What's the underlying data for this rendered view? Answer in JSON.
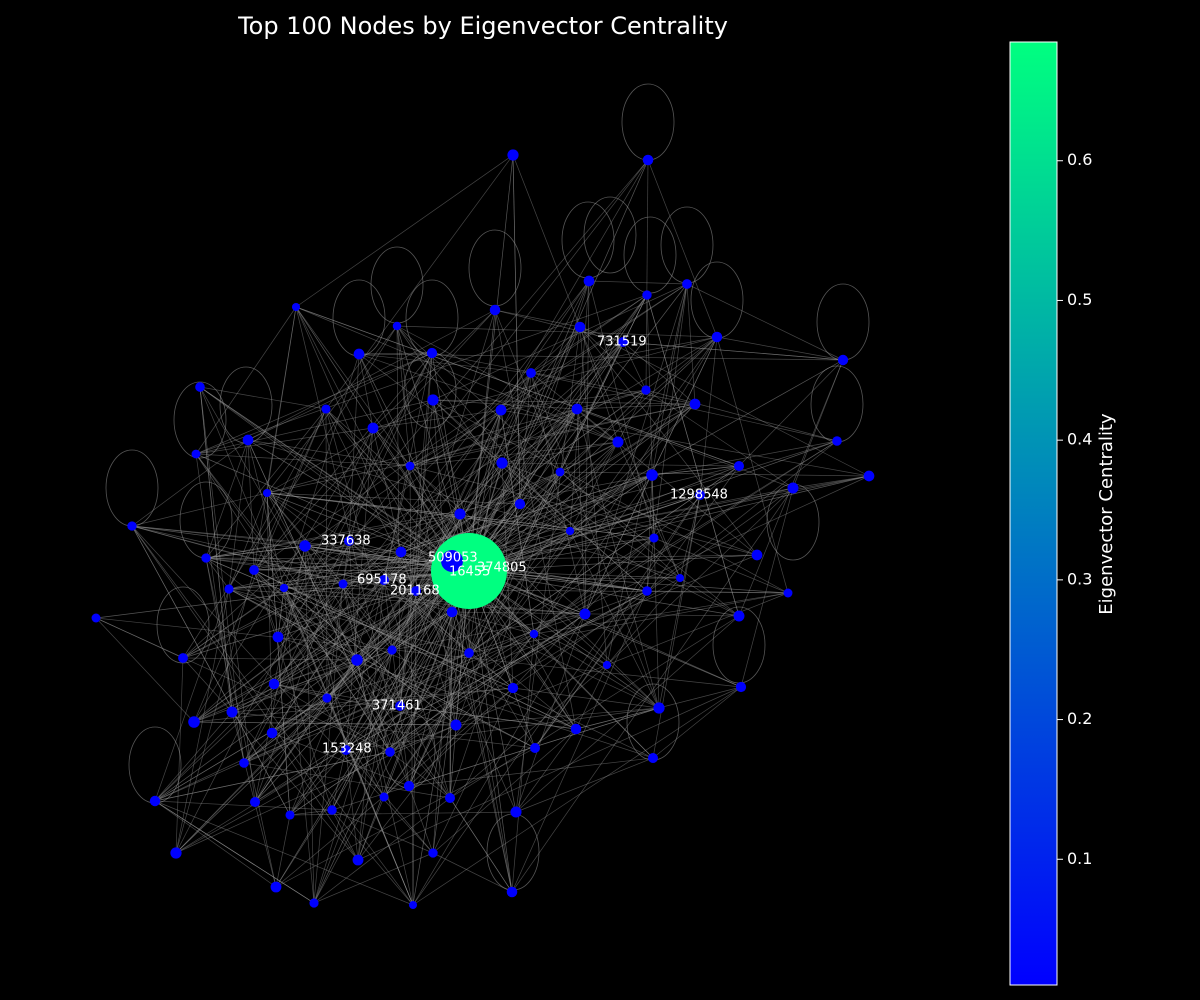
{
  "chart_data": {
    "type": "network",
    "title": "Top 100 Nodes by Eigenvector Centrality",
    "background_color": "#000000",
    "edge_color": "#9a9a9a",
    "node_color_low": "#0000ff",
    "node_color_high": "#00ff80",
    "labeled_nodes": [
      {
        "id": "509053"
      },
      {
        "id": "16455"
      },
      {
        "id": "374805"
      },
      {
        "id": "337638"
      },
      {
        "id": "695178"
      },
      {
        "id": "201168"
      },
      {
        "id": "731519"
      },
      {
        "id": "1298548"
      },
      {
        "id": "371461"
      },
      {
        "id": "153248"
      }
    ],
    "hub_node": {
      "id": "16455",
      "centrality": 0.68
    },
    "other_nodes_centrality_approx": 0.01,
    "self_loops": true,
    "colorbar": {
      "label": "Eigenvector Centrality",
      "range": [
        0.01,
        0.685
      ],
      "ticks": [
        "0.1",
        "0.2",
        "0.3",
        "0.4",
        "0.5",
        "0.6"
      ],
      "tick_values": [
        0.1,
        0.2,
        0.3,
        0.4,
        0.5,
        0.6
      ],
      "colormap": "winter"
    }
  }
}
